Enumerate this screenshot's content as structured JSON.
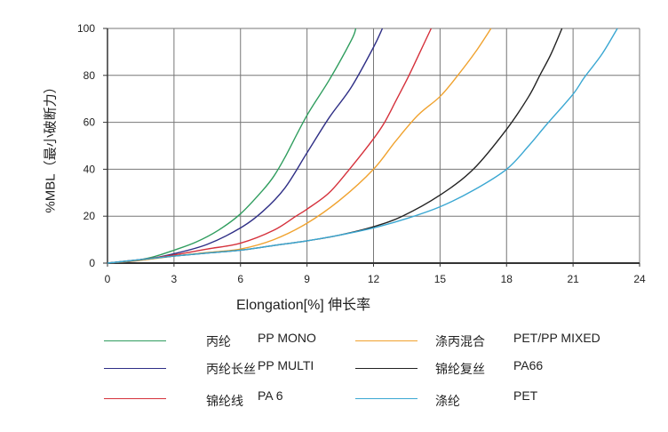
{
  "chart_data": {
    "type": "line",
    "title": "",
    "xlabel": "Elongation[%]  伸长率",
    "ylabel": "%MBL（最小破断力）",
    "xlim": [
      0,
      24
    ],
    "ylim": [
      0,
      100
    ],
    "xticks": [
      0,
      3,
      6,
      9,
      12,
      15,
      18,
      21,
      24
    ],
    "yticks": [
      0,
      20,
      40,
      60,
      80,
      100
    ],
    "grid": true,
    "legend_position": "bottom",
    "series": [
      {
        "name": "丙纶 PP MONO",
        "name_cn": "丙纶",
        "name_en": "PP MONO",
        "color": "#2f9d5e",
        "x": [
          0,
          1,
          2,
          3,
          4,
          5,
          6,
          7,
          7.5,
          8,
          9,
          10,
          11,
          11.2
        ],
        "y": [
          0,
          0.8,
          2.5,
          5.5,
          9,
          14,
          21,
          31,
          37,
          45,
          63,
          78,
          95,
          100
        ]
      },
      {
        "name": "丙纶长丝 PP MULTI",
        "name_cn": "丙纶长丝",
        "name_en": "PP MULTI",
        "color": "#2f2f86",
        "x": [
          0,
          1.5,
          3,
          4.5,
          6,
          7,
          8,
          9,
          10,
          11,
          12,
          12.4
        ],
        "y": [
          0,
          1.2,
          4,
          8,
          15,
          22,
          32,
          47,
          62,
          75,
          92,
          100
        ]
      },
      {
        "name": "锦纶线 PA 6",
        "name_cn": "锦纶线",
        "name_en": "PA 6",
        "color": "#d5313b",
        "x": [
          0,
          1.5,
          3,
          4.5,
          6,
          7.5,
          8.5,
          9,
          10,
          11,
          12,
          12.5,
          13,
          13.6,
          14.1,
          14.6
        ],
        "y": [
          0,
          1.5,
          3.5,
          6,
          8.5,
          14,
          20,
          23,
          30,
          41,
          53,
          60,
          69,
          80,
          90,
          100
        ]
      },
      {
        "name": "涤丙混合 PET/PP MIXED",
        "name_cn": "涤丙混合",
        "name_en": "PET/PP MIXED",
        "color": "#f0a22e",
        "x": [
          0,
          1.5,
          3,
          4.5,
          6,
          7.5,
          9,
          10.5,
          12,
          13,
          14,
          15,
          15.8,
          16.6,
          17.3
        ],
        "y": [
          0,
          1.2,
          3,
          4.5,
          6,
          10,
          17,
          27,
          40,
          52,
          63,
          71,
          80,
          90,
          100
        ]
      },
      {
        "name": "锦纶复丝 PA66",
        "name_cn": "锦纶复丝",
        "name_en": "PA66",
        "color": "#222222",
        "x": [
          0,
          1.5,
          3,
          4.5,
          6,
          7.5,
          9,
          10.5,
          12,
          13.3,
          15,
          16.5,
          18,
          19,
          19.5,
          20,
          20.5
        ],
        "y": [
          0,
          1.5,
          3,
          4.3,
          5.5,
          7.5,
          9.5,
          12,
          15.5,
          20,
          29,
          40,
          57,
          71,
          80,
          89,
          100
        ]
      },
      {
        "name": "涤纶 PET",
        "name_cn": "涤纶",
        "name_en": "PET",
        "color": "#3aa7d2",
        "x": [
          0,
          1.5,
          3,
          4.5,
          6,
          7.5,
          9,
          10.5,
          12,
          13.5,
          15,
          16.5,
          18,
          19,
          19.8,
          21,
          21.5,
          22.3,
          23
        ],
        "y": [
          0,
          1.5,
          3,
          4.3,
          5.5,
          7.5,
          9.5,
          12,
          15,
          19,
          24,
          31,
          40,
          50,
          59,
          72,
          79,
          89,
          100
        ]
      }
    ]
  }
}
